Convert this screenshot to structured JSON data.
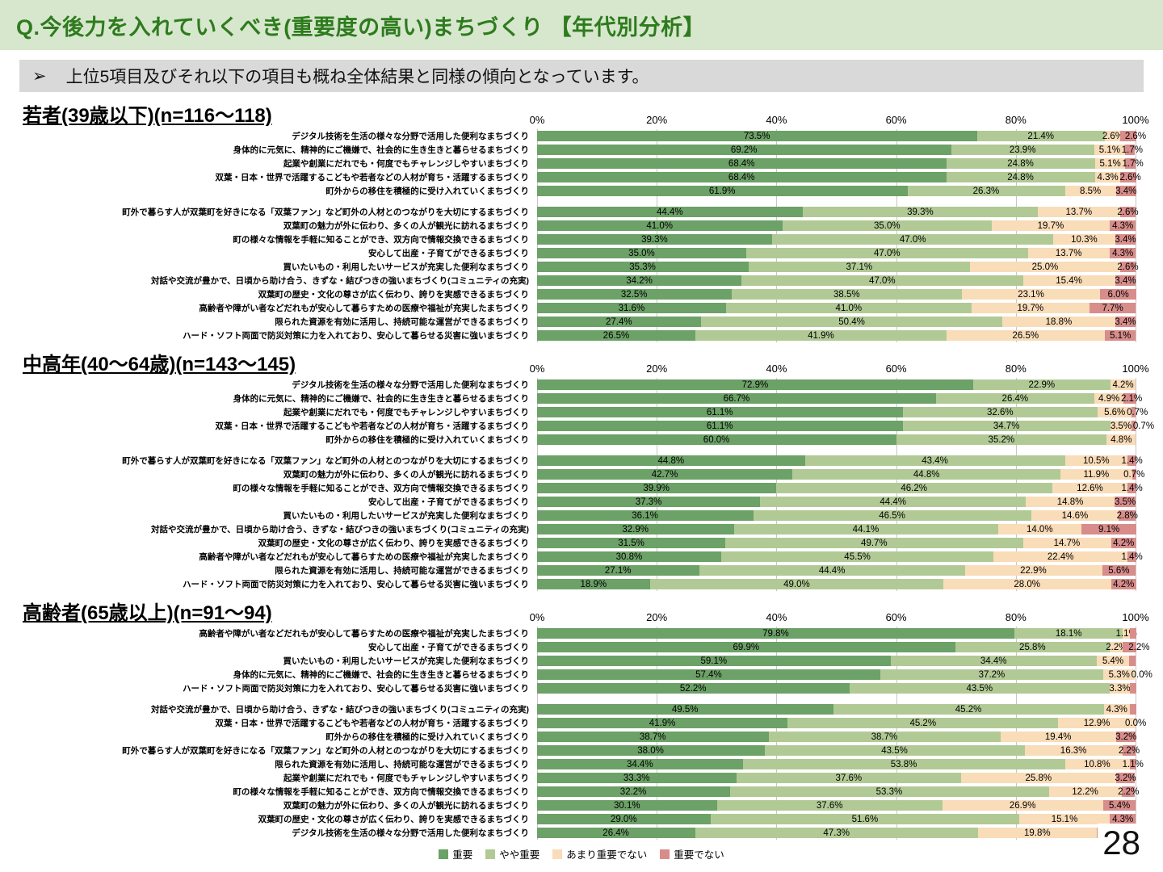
{
  "header": {
    "title": "Q.今後力を入れていくべき(重要度の高い)まちづくり 【年代別分析】"
  },
  "note": {
    "bullet": "➢",
    "text": "上位5項目及びそれ以下の項目も概ね全体結果と同様の傾向となっています。"
  },
  "page_number": "28",
  "legend": [
    {
      "label": "重要",
      "color": "#6ca167"
    },
    {
      "label": "やや重要",
      "color": "#b1ca95"
    },
    {
      "label": "あまり重要でない",
      "color": "#f9dcb8"
    },
    {
      "label": "重要でない",
      "color": "#d88d8b"
    }
  ],
  "chart_data": [
    {
      "type": "bar",
      "stacked": true,
      "title": "若者(39歳以下)(n=116〜118)",
      "x_ticks": [
        "0%",
        "20%",
        "40%",
        "60%",
        "80%",
        "100%"
      ],
      "xlim": [
        0,
        100
      ],
      "series_names": [
        "重要",
        "やや重要",
        "あまり重要でない",
        "重要でない"
      ],
      "rows": [
        {
          "label": "デジタル技術を生活の様々な分野で活用した便利なまちづくり",
          "values": [
            73.5,
            21.4,
            2.6,
            2.6
          ]
        },
        {
          "label": "身体的に元気に、精神的にご機嫌で、社会的に生き生きと暮らせるまちづくり",
          "values": [
            69.2,
            23.9,
            5.1,
            1.7
          ]
        },
        {
          "label": "起業や創業にだれでも・何度でもチャレンジしやすいまちづくり",
          "values": [
            68.4,
            24.8,
            5.1,
            1.7
          ]
        },
        {
          "label": "双葉・日本・世界で活躍するこどもや若者などの人材が育ち・活躍するまちづくり",
          "values": [
            68.4,
            24.8,
            4.3,
            2.6
          ]
        },
        {
          "label": "町外からの移住を積極的に受け入れていくまちづくり",
          "values": [
            61.9,
            26.3,
            8.5,
            3.4
          ]
        },
        {
          "label": "町外で暮らす人が双葉町を好きになる「双葉ファン」など町外の人材とのつながりを大切にするまちづくり",
          "values": [
            44.4,
            39.3,
            13.7,
            2.6
          ]
        },
        {
          "label": "双葉町の魅力が外に伝わり、多くの人が観光に訪れるまちづくり",
          "values": [
            41.0,
            35.0,
            19.7,
            4.3
          ]
        },
        {
          "label": "町の様々な情報を手軽に知ることができ、双方向で情報交換できるまちづくり",
          "values": [
            39.3,
            47.0,
            10.3,
            3.4
          ]
        },
        {
          "label": "安心して出産・子育てができるまちづくり",
          "values": [
            35.0,
            47.0,
            13.7,
            4.3
          ]
        },
        {
          "label": "買いたいもの・利用したいサービスが充実した便利なまちづくり",
          "values": [
            35.3,
            37.1,
            25.0,
            2.6
          ]
        },
        {
          "label": "対話や交流が豊かで、日頃から助け合う、きずな・結びつきの強いまちづくり(コミュニティの充実)",
          "values": [
            34.2,
            47.0,
            15.4,
            3.4
          ]
        },
        {
          "label": "双葉町の歴史・文化の尊さが広く伝わり、誇りを実感できるまちづくり",
          "values": [
            32.5,
            38.5,
            23.1,
            6.0
          ]
        },
        {
          "label": "高齢者や障がい者などだれもが安心して暮らすための医療や福祉が充実したまちづくり",
          "values": [
            31.6,
            41.0,
            19.7,
            7.7
          ]
        },
        {
          "label": "限られた資源を有効に活用し、持続可能な運営ができるまちづくり",
          "values": [
            27.4,
            50.4,
            18.8,
            3.4
          ]
        },
        {
          "label": "ハード・ソフト両面で防災対策に力を入れており、安心して暮らせる災害に強いまちづくり",
          "values": [
            26.5,
            41.9,
            26.5,
            5.1
          ]
        }
      ]
    },
    {
      "type": "bar",
      "stacked": true,
      "title": "中高年(40〜64歳)(n=143〜145)",
      "x_ticks": [
        "0%",
        "20%",
        "40%",
        "60%",
        "80%",
        "100%"
      ],
      "xlim": [
        0,
        100
      ],
      "series_names": [
        "重要",
        "やや重要",
        "あまり重要でない",
        "重要でない"
      ],
      "rows": [
        {
          "label": "デジタル技術を生活の様々な分野で活用した便利なまちづくり",
          "values": [
            72.9,
            22.9,
            4.2,
            0
          ]
        },
        {
          "label": "身体的に元気に、精神的にご機嫌で、社会的に生き生きと暮らせるまちづくり",
          "values": [
            66.7,
            26.4,
            4.9,
            2.1
          ]
        },
        {
          "label": "起業や創業にだれでも・何度でもチャレンジしやすいまちづくり",
          "values": [
            61.1,
            32.6,
            5.6,
            0.7
          ]
        },
        {
          "label": "双葉・日本・世界で活躍するこどもや若者などの人材が育ち・活躍するまちづくり",
          "values": [
            61.1,
            34.7,
            3.5,
            0.7
          ]
        },
        {
          "label": "町外からの移住を積極的に受け入れていくまちづくり",
          "values": [
            60.0,
            35.2,
            4.8,
            0
          ]
        },
        {
          "label": "町外で暮らす人が双葉町を好きになる「双葉ファン」など町外の人材とのつながりを大切にするまちづくり",
          "values": [
            44.8,
            43.4,
            10.5,
            1.4
          ]
        },
        {
          "label": "双葉町の魅力が外に伝わり、多くの人が観光に訪れるまちづくり",
          "values": [
            42.7,
            44.8,
            11.9,
            0.7
          ]
        },
        {
          "label": "町の様々な情報を手軽に知ることができ、双方向で情報交換できるまちづくり",
          "values": [
            39.9,
            46.2,
            12.6,
            1.4
          ]
        },
        {
          "label": "安心して出産・子育てができるまちづくり",
          "values": [
            37.3,
            44.4,
            14.8,
            3.5
          ]
        },
        {
          "label": "買いたいもの・利用したいサービスが充実した便利なまちづくり",
          "values": [
            36.1,
            46.5,
            14.6,
            2.8
          ]
        },
        {
          "label": "対話や交流が豊かで、日頃から助け合う、きずな・結びつきの強いまちづくり(コミュニティの充実)",
          "values": [
            32.9,
            44.1,
            14.0,
            9.1
          ]
        },
        {
          "label": "双葉町の歴史・文化の尊さが広く伝わり、誇りを実感できるまちづくり",
          "values": [
            31.5,
            49.7,
            14.7,
            4.2
          ]
        },
        {
          "label": "高齢者や障がい者などだれもが安心して暮らすための医療や福祉が充実したまちづくり",
          "values": [
            30.8,
            45.5,
            22.4,
            1.4
          ]
        },
        {
          "label": "限られた資源を有効に活用し、持続可能な運営ができるまちづくり",
          "values": [
            27.1,
            44.4,
            22.9,
            5.6
          ]
        },
        {
          "label": "ハード・ソフト両面で防災対策に力を入れており、安心して暮らせる災害に強いまちづくり",
          "values": [
            18.9,
            49.0,
            28.0,
            4.2
          ]
        }
      ]
    },
    {
      "type": "bar",
      "stacked": true,
      "title": "高齢者(65歳以上)(n=91〜94)",
      "x_ticks": [
        "0%",
        "20%",
        "40%",
        "60%",
        "80%",
        "100%"
      ],
      "xlim": [
        0,
        100
      ],
      "series_names": [
        "重要",
        "やや重要",
        "あまり重要でない",
        "重要でない"
      ],
      "rows": [
        {
          "label": "高齢者や障がい者などだれもが安心して暮らすための医療や福祉が充実したまちづくり",
          "values": [
            79.8,
            18.1,
            1.1,
            1.1
          ],
          "no_label": [
            3
          ]
        },
        {
          "label": "安心して出産・子育てができるまちづくり",
          "values": [
            69.9,
            25.8,
            2.2,
            2.2
          ]
        },
        {
          "label": "買いたいもの・利用したいサービスが充実した便利なまちづくり",
          "values": [
            59.1,
            34.4,
            5.4,
            1.1
          ],
          "no_label": [
            3
          ]
        },
        {
          "label": "身体的に元気に、精神的にご機嫌で、社会的に生き生きと暮らせるまちづくり",
          "values": [
            57.4,
            37.2,
            5.3,
            0
          ],
          "show_zero": true
        },
        {
          "label": "ハード・ソフト両面で防災対策に力を入れており、安心して暮らせる災害に強いまちづくり",
          "values": [
            52.2,
            43.5,
            3.3,
            1.1
          ],
          "no_label": [
            3
          ]
        },
        {
          "label": "対話や交流が豊かで、日頃から助け合う、きずな・結びつきの強いまちづくり(コミュニティの充実)",
          "values": [
            49.5,
            45.2,
            4.3,
            1.1
          ],
          "no_label": [
            3
          ]
        },
        {
          "label": "双葉・日本・世界で活躍するこどもや若者などの人材が育ち・活躍するまちづくり",
          "values": [
            41.9,
            45.2,
            12.9,
            0
          ],
          "show_zero": true
        },
        {
          "label": "町外からの移住を積極的に受け入れていくまちづくり",
          "values": [
            38.7,
            38.7,
            19.4,
            3.2
          ]
        },
        {
          "label": "町外で暮らす人が双葉町を好きになる「双葉ファン」など町外の人材とのつながりを大切にするまちづくり",
          "values": [
            38.0,
            43.5,
            16.3,
            2.2
          ]
        },
        {
          "label": "限られた資源を有効に活用し、持続可能な運営ができるまちづくり",
          "values": [
            34.4,
            53.8,
            10.8,
            1.1
          ]
        },
        {
          "label": "起業や創業にだれでも・何度でもチャレンジしやすいまちづくり",
          "values": [
            33.3,
            37.6,
            25.8,
            3.2
          ]
        },
        {
          "label": "町の様々な情報を手軽に知ることができ、双方向で情報交換できるまちづくり",
          "values": [
            32.2,
            53.3,
            12.2,
            2.2
          ]
        },
        {
          "label": "双葉町の魅力が外に伝わり、多くの人が観光に訪れるまちづくり",
          "values": [
            30.1,
            37.6,
            26.9,
            5.4
          ]
        },
        {
          "label": "双葉町の歴史・文化の尊さが広く伝わり、誇りを実感できるまちづくり",
          "values": [
            29.0,
            51.6,
            15.1,
            4.3
          ]
        },
        {
          "label": "デジタル技術を生活の様々な分野で活用した便利なまちづくり",
          "values": [
            26.4,
            47.3,
            19.8,
            6.6
          ]
        }
      ]
    }
  ]
}
